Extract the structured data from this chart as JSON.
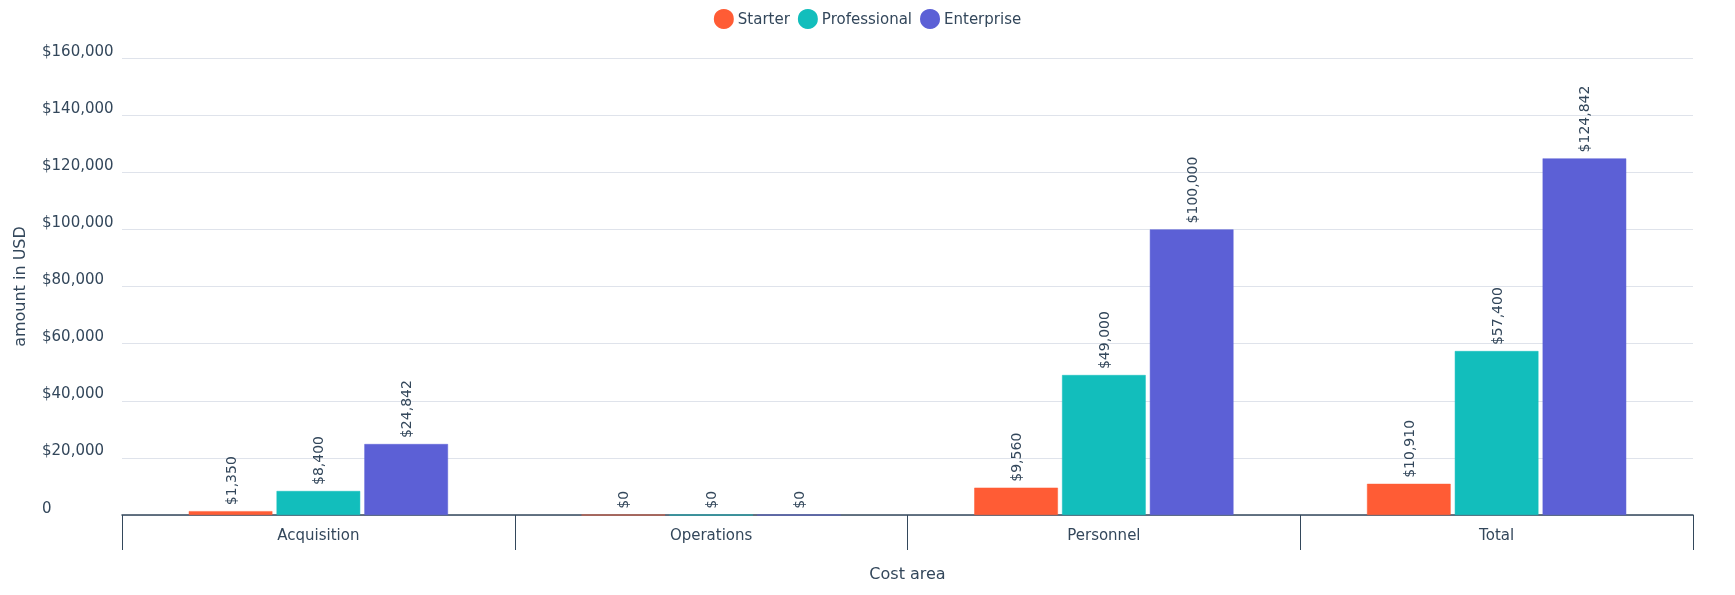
{
  "chart_data": {
    "type": "bar",
    "xlabel": "Cost area",
    "ylabel": "amount in USD",
    "categories": [
      "Acquisition",
      "Operations",
      "Personnel",
      "Total"
    ],
    "series": [
      {
        "name": "Starter",
        "color": "#ff5c35",
        "values": [
          1350,
          0,
          9560,
          10910
        ],
        "value_labels": [
          "$1,350",
          "$0",
          "$9,560",
          "$10,910"
        ]
      },
      {
        "name": "Professional",
        "color": "#12bebc",
        "values": [
          8400,
          0,
          49000,
          57400
        ],
        "value_labels": [
          "$8,400",
          "$0",
          "$49,000",
          "$57,400"
        ]
      },
      {
        "name": "Enterprise",
        "color": "#5c60d6",
        "values": [
          24842,
          0,
          100000,
          124842
        ],
        "value_labels": [
          "$24,842",
          "$0",
          "$100,000",
          "$124,842"
        ]
      }
    ],
    "ylim": [
      0,
      160000
    ],
    "yticks": [
      0,
      {
        "value": 20000,
        "label": "$20,000"
      },
      {
        "value": 40000,
        "label": "$40,000"
      },
      {
        "value": 60000,
        "label": "$60,000"
      },
      {
        "value": 80000,
        "label": "$80,000"
      },
      {
        "value": 100000,
        "label": "$100,000"
      },
      {
        "value": 120000,
        "label": "$120,000"
      },
      {
        "value": 140000,
        "label": "$140,000"
      },
      {
        "value": 160000,
        "label": "$160,000"
      }
    ],
    "grid": "y",
    "legend": "top"
  }
}
